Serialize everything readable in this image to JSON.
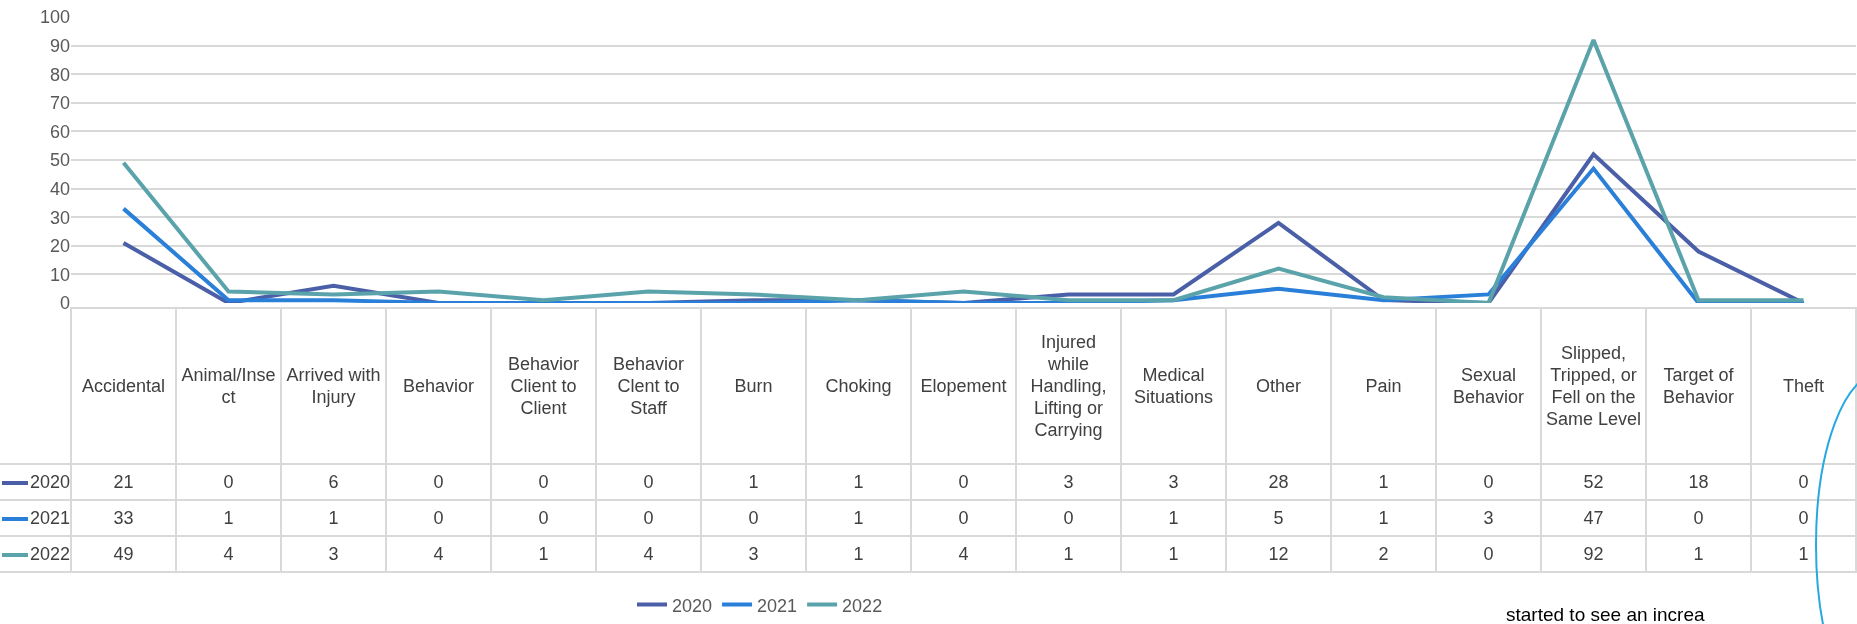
{
  "chart_data": {
    "type": "line",
    "categories": [
      "Accidental",
      "Animal/Insect",
      "Arrived with Injury",
      "Behavior",
      "Behavior Client to Client",
      "Behavior Clent to Staff",
      "Burn",
      "Choking",
      "Elopement",
      "Injured while Handling, Lifting or Carrying",
      "Medical Situations",
      "Other",
      "Pain",
      "Sexual Behavior",
      "Slipped, Tripped, or Fell on the Same Level",
      "Target of Behavior",
      "Theft"
    ],
    "series": [
      {
        "name": "2020",
        "color": "#4a5fa8",
        "values": [
          21,
          0,
          6,
          0,
          0,
          0,
          1,
          1,
          0,
          3,
          3,
          28,
          1,
          0,
          52,
          18,
          0
        ]
      },
      {
        "name": "2021",
        "color": "#2a7fd8",
        "values": [
          33,
          1,
          1,
          0,
          0,
          0,
          0,
          1,
          0,
          0,
          1,
          5,
          1,
          3,
          47,
          0,
          0
        ]
      },
      {
        "name": "2022",
        "color": "#5ba3ab",
        "values": [
          49,
          4,
          3,
          4,
          1,
          4,
          3,
          1,
          4,
          1,
          1,
          12,
          2,
          0,
          92,
          1,
          1
        ]
      }
    ],
    "ylim": [
      0,
      100
    ],
    "yticks": [
      0,
      10,
      20,
      30,
      40,
      50,
      60,
      70,
      80,
      90,
      100
    ],
    "grid": "y",
    "legend": "bottom",
    "marker": "none",
    "line_style": "solid",
    "data_labels": true,
    "annotations": [
      "started to see an increa"
    ]
  }
}
